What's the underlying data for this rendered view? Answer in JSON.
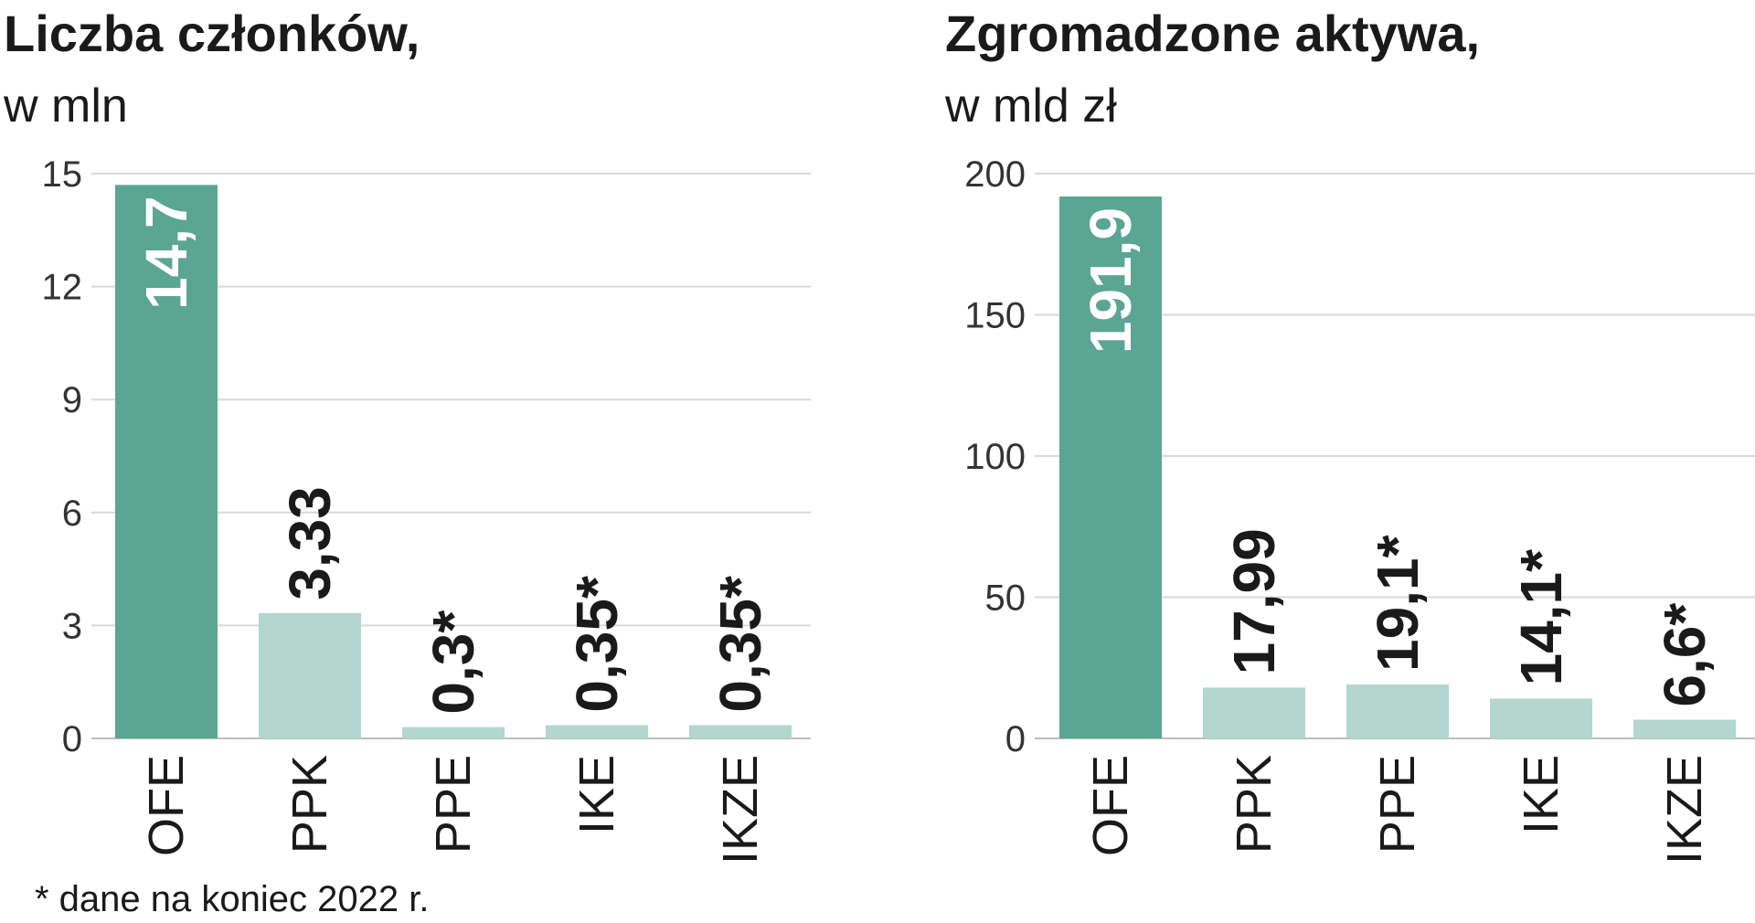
{
  "colors": {
    "main": "#5ba594",
    "light": "#b3d6cf",
    "label_dark": "#1a1a1a",
    "label_light": "#ffffff"
  },
  "chart_data": [
    {
      "type": "bar",
      "title": "Liczba członków,",
      "subtitle": "w mln",
      "categories": [
        "OFE",
        "PPK",
        "PPE",
        "IKE",
        "IKZE"
      ],
      "values": [
        14.7,
        3.33,
        0.3,
        0.35,
        0.35
      ],
      "value_labels": [
        "14,7",
        "3,33",
        "0,3*",
        "0,35*",
        "0,35*"
      ],
      "yticks": [
        0,
        3,
        6,
        9,
        12,
        15
      ],
      "ylim": [
        0,
        15
      ],
      "grid": true
    },
    {
      "type": "bar",
      "title": "Zgromadzone aktywa,",
      "subtitle": "w mld zł",
      "categories": [
        "OFE",
        "PPK",
        "PPE",
        "IKE",
        "IKZE"
      ],
      "values": [
        191.9,
        17.99,
        19.1,
        14.1,
        6.6
      ],
      "value_labels": [
        "191,9",
        "17,99",
        "19,1*",
        "14,1*",
        "6,6*"
      ],
      "yticks": [
        0,
        50,
        100,
        150,
        200
      ],
      "ylim": [
        0,
        200
      ],
      "grid": true
    }
  ],
  "footnote": "* dane na koniec 2022 r."
}
